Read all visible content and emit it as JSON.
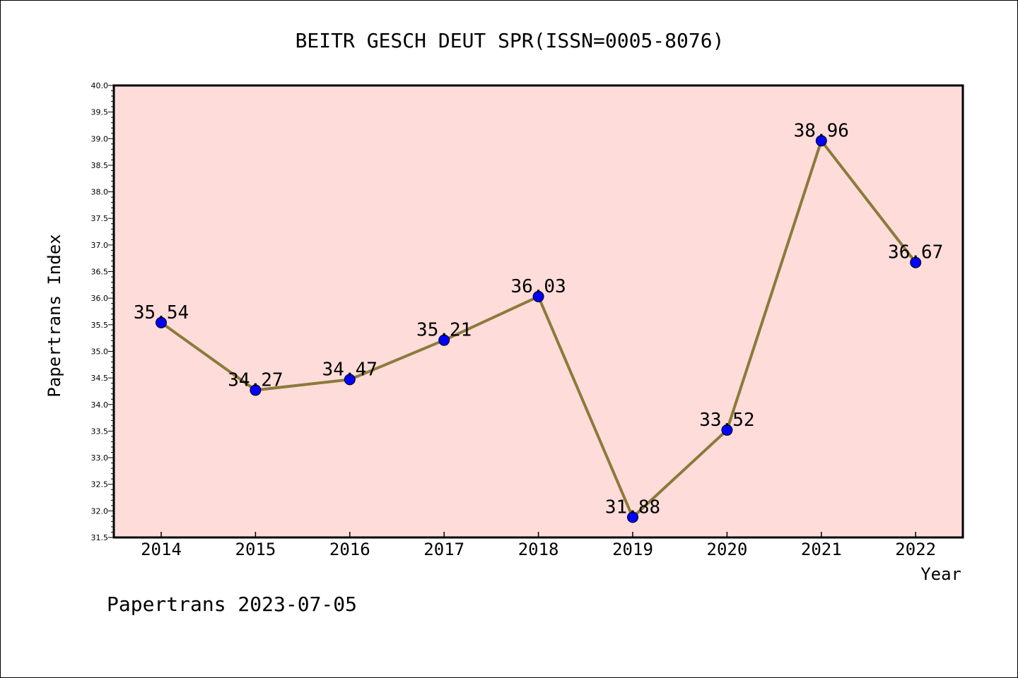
{
  "chart_data": {
    "type": "line",
    "title": "BEITR GESCH DEUT SPR(ISSN=0005-8076)",
    "xlabel": "Year",
    "ylabel": "Papertrans Index",
    "footer": "Papertrans 2023-07-05",
    "x": [
      "2014",
      "2015",
      "2016",
      "2017",
      "2018",
      "2019",
      "2020",
      "2021",
      "2022"
    ],
    "values": [
      35.54,
      34.27,
      34.47,
      35.21,
      36.03,
      31.88,
      33.52,
      38.96,
      36.67
    ],
    "value_labels": [
      "35.54",
      "34.27",
      "34.47",
      "35.21",
      "36.03",
      "31.88",
      "33.52",
      "38.96",
      "36.67"
    ],
    "ylim": [
      31.5,
      40.0
    ],
    "yticks": [
      "31.5",
      "32.0",
      "32.5",
      "33.0",
      "33.5",
      "34.0",
      "34.5",
      "35.0",
      "35.5",
      "36.0",
      "36.5",
      "37.0",
      "37.5",
      "38.0",
      "38.5",
      "39.0",
      "39.5",
      "40.0"
    ],
    "grid": false,
    "colors": {
      "plot_background": "#fddcda",
      "line": "#8c7a3a",
      "marker": "#0000ff"
    }
  }
}
